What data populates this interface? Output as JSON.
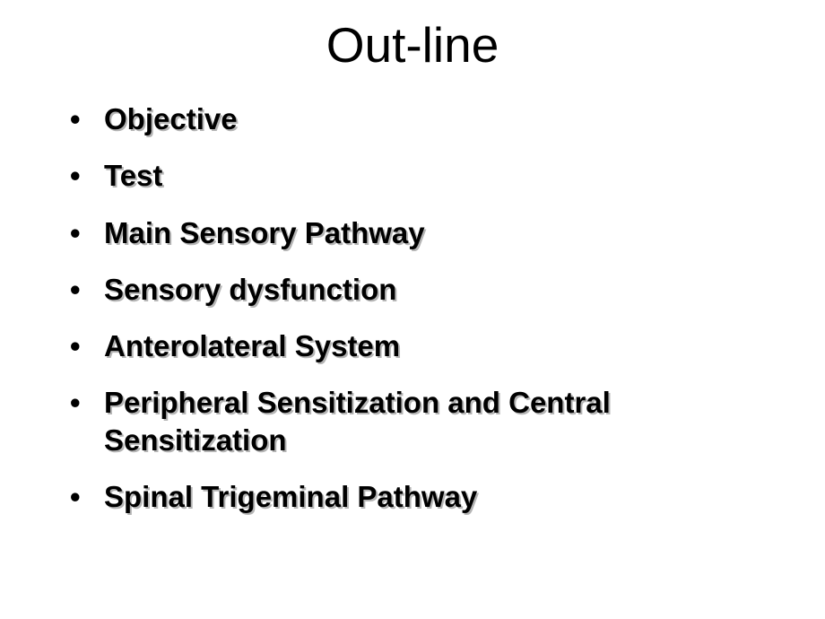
{
  "slide": {
    "title": "Out-line",
    "title_fontsize": 55,
    "title_color": "#000000",
    "background_color": "#ffffff",
    "bullets": [
      {
        "text": "Objective"
      },
      {
        "text": "Test"
      },
      {
        "text": "Main Sensory Pathway"
      },
      {
        "text": "Sensory dysfunction"
      },
      {
        "text": "Anterolateral System"
      },
      {
        "text": "Peripheral Sensitization and Central Sensitization"
      },
      {
        "text": "Spinal Trigeminal Pathway"
      }
    ],
    "bullet_fontsize": 33,
    "bullet_text_color": "#000000",
    "bullet_shadow_color": "#b5b5b5",
    "bullet_font_weight": 700
  }
}
